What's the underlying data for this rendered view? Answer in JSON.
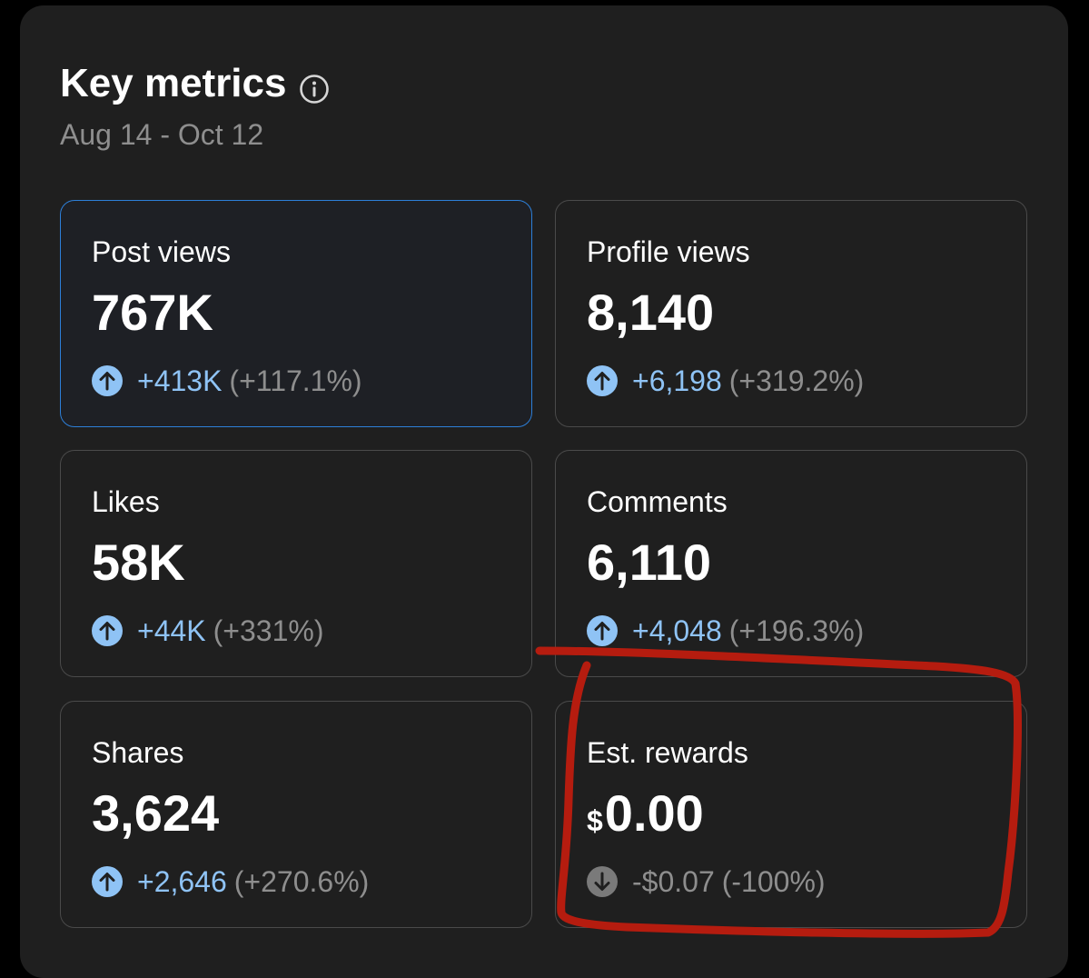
{
  "header": {
    "title": "Key metrics",
    "date_range": "Aug 14 - Oct 12"
  },
  "metrics": [
    {
      "label": "Post views",
      "value": "767K",
      "delta": "+413K",
      "pct": "(+117.1%)",
      "trend": "up"
    },
    {
      "label": "Profile views",
      "value": "8,140",
      "delta": "+6,198",
      "pct": "(+319.2%)",
      "trend": "up"
    },
    {
      "label": "Likes",
      "value": "58K",
      "delta": "+44K",
      "pct": "(+331%)",
      "trend": "up"
    },
    {
      "label": "Comments",
      "value": "6,110",
      "delta": "+4,048",
      "pct": "(+196.3%)",
      "trend": "up"
    },
    {
      "label": "Shares",
      "value": "3,624",
      "delta": "+2,646",
      "pct": "(+270.6%)",
      "trend": "up"
    },
    {
      "label": "Est. rewards",
      "currency": "$",
      "value": "0.00",
      "delta": "-$0.07",
      "pct": "(-100%)",
      "trend": "down"
    }
  ],
  "colors": {
    "panel_bg": "#1f1f1f",
    "card_border": "#4a4a4a",
    "selected_border": "#2d7fd8",
    "up_accent": "#8fc3f5",
    "muted_text": "#8e8e8e",
    "annotation_red": "#b51c0f"
  },
  "icons": {
    "info": "info-icon",
    "up": "arrow-up-circle-icon",
    "down": "arrow-down-circle-icon"
  }
}
